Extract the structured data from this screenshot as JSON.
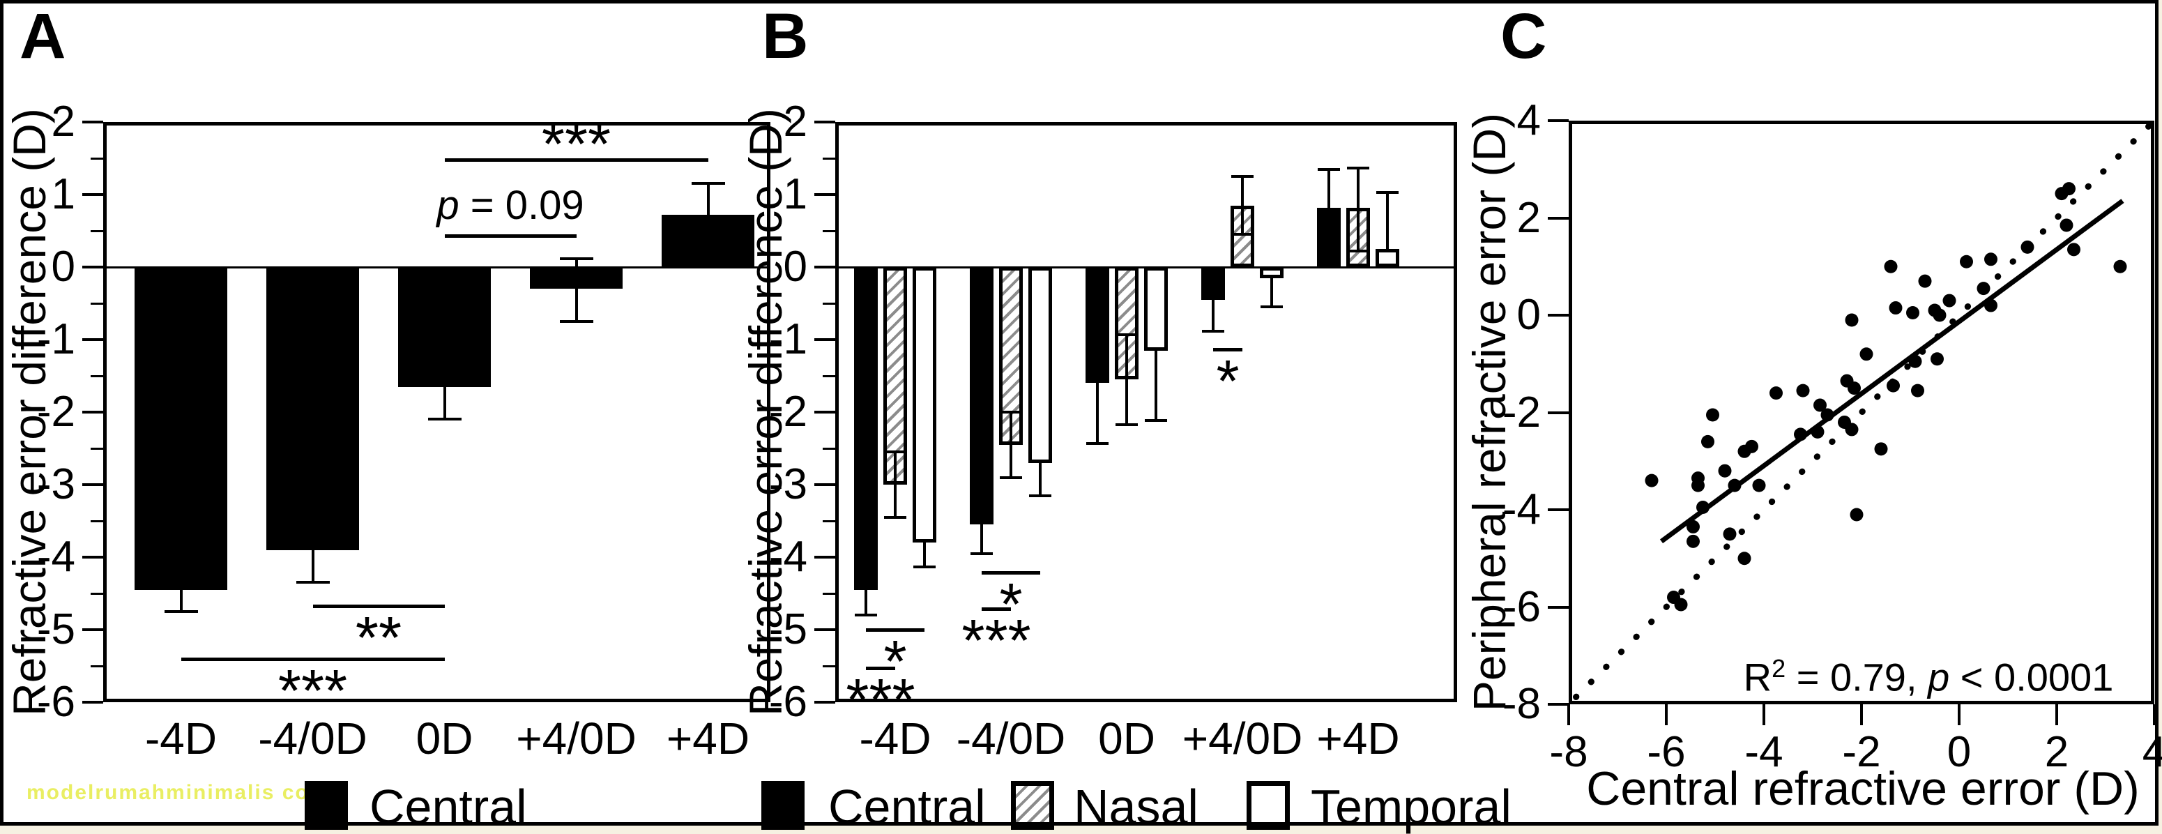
{
  "figure": {
    "watermark": "modelrumahminimalis co",
    "background": "#ffffff",
    "frame_color": "#000000",
    "margin_color": "#f6f1e2",
    "accent_black": "#000000"
  },
  "chart_data": [
    {
      "id": "A",
      "type": "bar",
      "letter": "A",
      "ylabel": "Refractive error difference (D)",
      "ylim": [
        2,
        -6
      ],
      "yticks": [
        2,
        1,
        0,
        -1,
        -2,
        -3,
        -4,
        -5,
        -6
      ],
      "minor_tick_step": 0.5,
      "grid": false,
      "categories": [
        "-4D",
        "-4/0D",
        "0D",
        "+4/0D",
        "+4D"
      ],
      "series": [
        {
          "name": "Central",
          "fill": "black",
          "values": [
            -4.45,
            -3.9,
            -1.65,
            -0.3,
            0.72
          ],
          "err_up": [
            null,
            null,
            null,
            0.42,
            0.43
          ],
          "err_down": [
            0.3,
            0.45,
            0.45,
            0.45,
            null
          ]
        }
      ],
      "legend": [
        {
          "label": "Central",
          "swatch": "black"
        }
      ],
      "significance": [
        {
          "y": 0.43,
          "from_cat": 2,
          "to_cat": 3,
          "label_italic": "p",
          "label": " = 0.09",
          "side": "above",
          "kind": "text"
        },
        {
          "y": 1.48,
          "from_cat": 2,
          "to_cat": 4,
          "label": "***",
          "side": "above",
          "kind": "stars"
        },
        {
          "y": -4.67,
          "from_cat": 1,
          "to_cat": 2,
          "label": "**",
          "side": "below",
          "kind": "stars"
        },
        {
          "y": -5.4,
          "from_cat": 0,
          "to_cat": 2,
          "label": "***",
          "side": "below",
          "kind": "stars"
        }
      ]
    },
    {
      "id": "B",
      "type": "bar",
      "letter": "B",
      "ylabel": "Refractive error difference (D)",
      "ylim": [
        2,
        -6
      ],
      "yticks": [
        2,
        1,
        0,
        -1,
        -2,
        -3,
        -4,
        -5,
        -6
      ],
      "minor_tick_step": 0.5,
      "grid": false,
      "categories": [
        "-4D",
        "-4/0D",
        "0D",
        "+4/0D",
        "+4D"
      ],
      "series": [
        {
          "name": "Central",
          "fill": "black",
          "values": [
            -4.45,
            -3.55,
            -1.6,
            -0.45,
            0.82
          ],
          "err_up": [
            null,
            null,
            null,
            null,
            0.53
          ],
          "err_down": [
            0.35,
            0.4,
            0.83,
            0.43,
            null
          ]
        },
        {
          "name": "Nasal",
          "fill": "hatch",
          "values": [
            -3.0,
            -2.45,
            -1.55,
            0.85,
            0.82
          ],
          "err_up": [
            0.45,
            0.45,
            0.62,
            0.4,
            0.55
          ],
          "err_down": [
            0.45,
            0.45,
            0.62,
            0.4,
            0.6
          ]
        },
        {
          "name": "Temporal",
          "fill": "white",
          "values": [
            -3.8,
            -2.7,
            -1.15,
            -0.15,
            0.25
          ],
          "err_up": [
            null,
            null,
            null,
            null,
            0.78
          ],
          "err_down": [
            0.33,
            0.45,
            0.97,
            0.4,
            null
          ]
        }
      ],
      "legend": [
        {
          "label": "Central",
          "swatch": "black"
        },
        {
          "label": "Nasal",
          "swatch": "hatch"
        },
        {
          "label": "Temporal",
          "swatch": "white"
        }
      ],
      "significance": [
        {
          "y": -5.0,
          "group": 0,
          "from_series": 0,
          "to_series": 2,
          "label": "*",
          "side": "below",
          "kind": "stars"
        },
        {
          "y": -5.53,
          "group": 0,
          "from_series": 0,
          "to_series": 1,
          "label": "***",
          "side": "below",
          "kind": "stars"
        },
        {
          "y": -4.21,
          "group": 1,
          "from_series": 0,
          "to_series": 2,
          "label": "*",
          "side": "below",
          "kind": "stars"
        },
        {
          "y": -4.71,
          "group": 1,
          "from_series": 0,
          "to_series": 1,
          "label": "***",
          "side": "below",
          "kind": "stars"
        },
        {
          "y": -1.13,
          "group": 3,
          "from_series": 0,
          "to_series": 1,
          "label": "*",
          "side": "below",
          "kind": "stars"
        }
      ]
    },
    {
      "id": "C",
      "type": "scatter",
      "letter": "C",
      "xlabel": "Central refractive error (D)",
      "ylabel": "Peripheral refractive error (D)",
      "xlim": [
        -8,
        4
      ],
      "ylim": [
        4,
        -8
      ],
      "xticks": [
        -8,
        -6,
        -4,
        -2,
        0,
        2,
        4
      ],
      "yticks": [
        4,
        2,
        0,
        -2,
        -4,
        -6,
        -8
      ],
      "grid": false,
      "points": [
        [
          -6.3,
          -3.4
        ],
        [
          -5.85,
          -5.8
        ],
        [
          -5.7,
          -5.95
        ],
        [
          -5.45,
          -4.35
        ],
        [
          -5.45,
          -4.65
        ],
        [
          -5.35,
          -3.35
        ],
        [
          -5.35,
          -3.5
        ],
        [
          -5.25,
          -3.95
        ],
        [
          -5.15,
          -2.6
        ],
        [
          -5.05,
          -2.05
        ],
        [
          -4.8,
          -3.2
        ],
        [
          -4.7,
          -4.5
        ],
        [
          -4.6,
          -3.5
        ],
        [
          -4.4,
          -2.8
        ],
        [
          -4.4,
          -5.0
        ],
        [
          -4.25,
          -2.7
        ],
        [
          -4.1,
          -3.5
        ],
        [
          -3.75,
          -1.6
        ],
        [
          -3.25,
          -2.45
        ],
        [
          -3.2,
          -1.55
        ],
        [
          -2.9,
          -2.4
        ],
        [
          -2.85,
          -1.85
        ],
        [
          -2.7,
          -2.05
        ],
        [
          -2.35,
          -2.2
        ],
        [
          -2.3,
          -1.35
        ],
        [
          -2.2,
          -2.35
        ],
        [
          -2.15,
          -1.5
        ],
        [
          -2.2,
          -0.1
        ],
        [
          -2.1,
          -4.1
        ],
        [
          -1.9,
          -0.8
        ],
        [
          -1.6,
          -2.75
        ],
        [
          -1.4,
          1.0
        ],
        [
          -1.35,
          -1.45
        ],
        [
          -1.3,
          0.15
        ],
        [
          -0.95,
          0.05
        ],
        [
          -0.9,
          -0.95
        ],
        [
          -0.85,
          -1.55
        ],
        [
          -0.7,
          0.7
        ],
        [
          -0.5,
          0.1
        ],
        [
          -0.45,
          -0.9
        ],
        [
          -0.4,
          0.0
        ],
        [
          -0.2,
          0.3
        ],
        [
          0.15,
          1.1
        ],
        [
          0.5,
          0.55
        ],
        [
          0.65,
          0.2
        ],
        [
          0.65,
          1.15
        ],
        [
          1.4,
          1.4
        ],
        [
          2.1,
          2.5
        ],
        [
          2.25,
          2.6
        ],
        [
          2.2,
          1.85
        ],
        [
          2.35,
          1.35
        ],
        [
          3.3,
          1.0
        ]
      ],
      "regression_line": {
        "x1": -6.1,
        "y1": -4.65,
        "x2": 3.35,
        "y2": 2.35
      },
      "identity_line": {
        "x1": -7.85,
        "y1": -7.85,
        "x2": 3.95,
        "y2": 3.95,
        "style": "dotted"
      },
      "annotation": {
        "pre": "R",
        "sup": "2",
        "mid": " = 0.79, ",
        "italic": "p",
        "post": " < 0.0001"
      }
    }
  ]
}
